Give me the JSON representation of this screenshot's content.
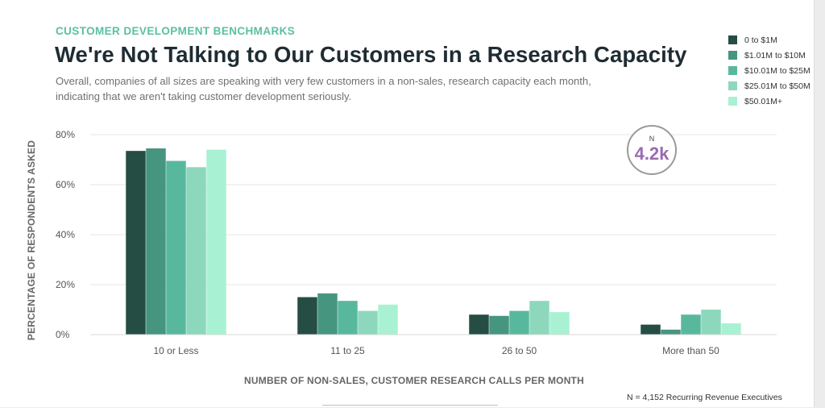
{
  "header": {
    "kicker": "CUSTOMER DEVELOPMENT BENCHMARKS",
    "title": "We're Not Talking to Our Customers in a Research Capacity",
    "subtitle": "Overall, companies of all sizes are speaking with very few customers in a non-sales, research capacity each month, indicating that we aren't taking customer development seriously."
  },
  "badge": {
    "label": "N",
    "value": "4.2k"
  },
  "footnote": "N = 4,152 Recurring Revenue Executives",
  "colors": {
    "badge_value": "#9a6bb0",
    "kicker": "#5bbfa3"
  },
  "chart_data": {
    "type": "bar",
    "title": "We're Not Talking to Our Customers in a Research Capacity",
    "xlabel": "NUMBER OF NON-SALES, CUSTOMER RESEARCH CALLS PER MONTH",
    "ylabel": "PERCENTAGE OF RESPONDENTS ASKED",
    "categories": [
      "10 or Less",
      "11 to 25",
      "26 to 50",
      "More than 50"
    ],
    "ylim": [
      0,
      80
    ],
    "yticks": [
      0,
      20,
      40,
      60,
      80
    ],
    "ytick_labels": [
      "0%",
      "20%",
      "40%",
      "60%",
      "80%"
    ],
    "grid": true,
    "legend_position": "top-right",
    "series": [
      {
        "name": "0 to $1M",
        "color": "#264d44",
        "values": [
          73.5,
          15,
          8,
          4
        ]
      },
      {
        "name": "$1.01M to $10M",
        "color": "#46957f",
        "values": [
          74.5,
          16.5,
          7.5,
          2
        ]
      },
      {
        "name": "$10.01M to $25M",
        "color": "#58b89d",
        "values": [
          69.5,
          13.5,
          9.5,
          8
        ]
      },
      {
        "name": "$25.01M to $50M",
        "color": "#8dd8bd",
        "values": [
          67,
          9.5,
          13.5,
          10
        ]
      },
      {
        "name": "$50.01M+",
        "color": "#a8f2d3",
        "values": [
          74,
          12,
          9,
          4.5
        ]
      }
    ]
  }
}
